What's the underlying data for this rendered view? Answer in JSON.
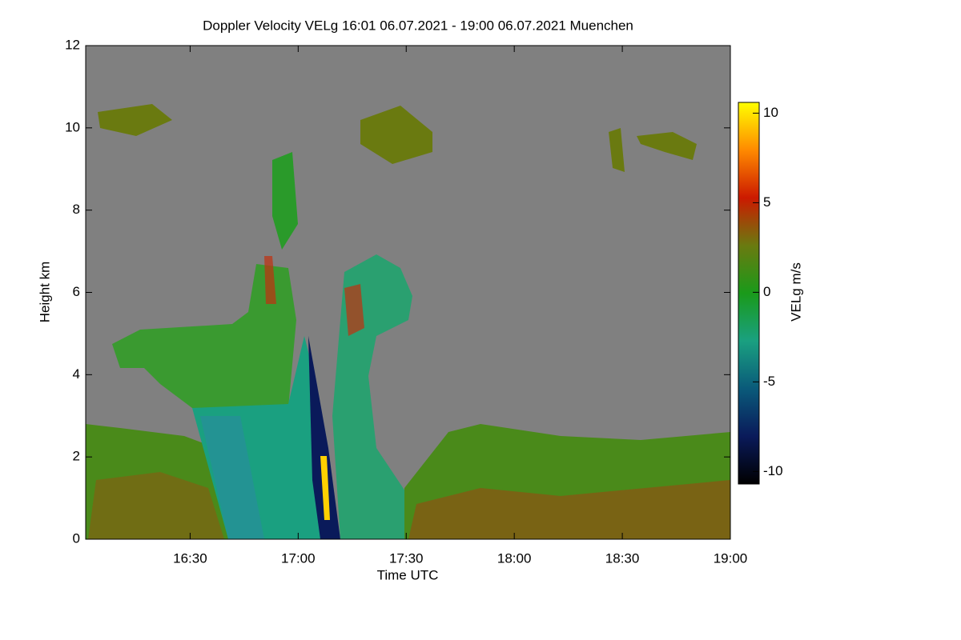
{
  "chart_data": {
    "type": "heatmap",
    "title": "Doppler Velocity VELg   16:01 06.07.2021 - 19:00 06.07.2021 Muenchen",
    "x_label": "Time UTC",
    "y_label": "Height km",
    "colorbar_label": "VELg m/s",
    "xlim": [
      961,
      1140
    ],
    "xticks": [
      {
        "value": 990,
        "label": "16:30"
      },
      {
        "value": 1020,
        "label": "17:00"
      },
      {
        "value": 1050,
        "label": "17:30"
      },
      {
        "value": 1080,
        "label": "18:00"
      },
      {
        "value": 1110,
        "label": "18:30"
      },
      {
        "value": 1140,
        "label": "19:00"
      }
    ],
    "ylim": [
      0,
      12
    ],
    "yticks": [
      0,
      2,
      4,
      6,
      8,
      10,
      12
    ],
    "clim": [
      -10.7,
      10.6
    ],
    "cticks": [
      -10,
      -5,
      0,
      5,
      10
    ],
    "colormap": [
      "#000000",
      "#0a1a5a",
      "#0a5a7a",
      "#1aa080",
      "#1a9a1a",
      "#6a7a10",
      "#cc1a00",
      "#ff8a00",
      "#ffff00"
    ],
    "background": "#808080"
  }
}
